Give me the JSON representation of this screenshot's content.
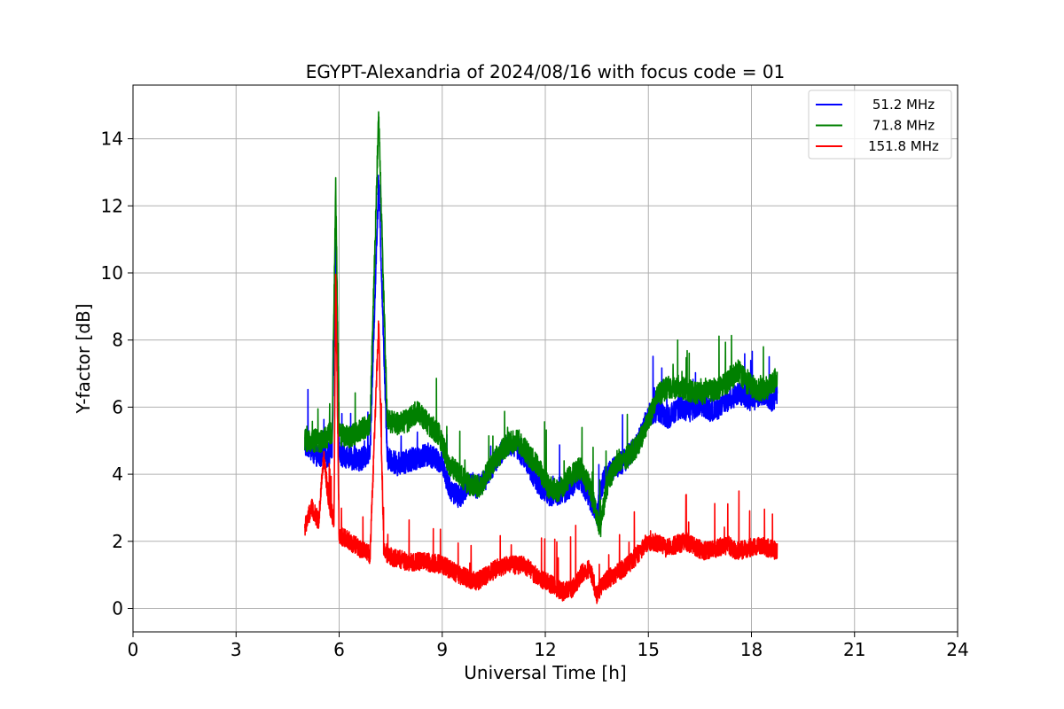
{
  "chart_data": {
    "type": "line",
    "title": "EGYPT-Alexandria of 2024/08/16 with focus code = 01",
    "xlabel": "Universal Time [h]",
    "ylabel": "Y-factor [dB]",
    "xlim": [
      0,
      24
    ],
    "ylim": [
      -0.7,
      15.6
    ],
    "xticks": [
      0,
      3,
      6,
      9,
      12,
      15,
      18,
      21,
      24
    ],
    "yticks": [
      0,
      2,
      4,
      6,
      8,
      10,
      12,
      14
    ],
    "xtick_labels": [
      "0",
      "3",
      "6",
      "9",
      "12",
      "15",
      "18",
      "21",
      "24"
    ],
    "ytick_labels": [
      "0",
      "2",
      "4",
      "6",
      "8",
      "10",
      "12",
      "14"
    ],
    "grid": true,
    "legend_position": "top-right",
    "series": [
      {
        "name": "51.2 MHz",
        "color": "#0000ff",
        "noise": 0.35,
        "x": [
          5.0,
          5.3,
          5.6,
          5.8,
          5.9,
          6.0,
          6.3,
          6.6,
          6.9,
          7.15,
          7.4,
          7.7,
          8.0,
          8.3,
          8.6,
          9.0,
          9.2,
          9.5,
          9.8,
          10.0,
          10.3,
          10.6,
          10.9,
          11.2,
          11.5,
          11.8,
          12.1,
          12.4,
          12.7,
          13.0,
          13.3,
          13.5,
          13.7,
          14.0,
          14.3,
          14.6,
          14.8,
          15.0,
          15.3,
          15.6,
          15.9,
          16.2,
          16.5,
          16.8,
          17.1,
          17.4,
          17.7,
          18.0,
          18.3,
          18.6,
          18.75
        ],
        "y": [
          4.9,
          4.6,
          4.5,
          4.7,
          11.0,
          4.6,
          4.5,
          4.4,
          4.7,
          12.8,
          4.5,
          4.3,
          4.4,
          4.5,
          4.6,
          4.3,
          3.6,
          3.3,
          3.8,
          3.6,
          3.9,
          4.5,
          4.9,
          4.8,
          4.3,
          3.7,
          3.4,
          3.4,
          3.6,
          3.9,
          3.3,
          2.8,
          3.9,
          4.2,
          4.4,
          4.8,
          5.2,
          5.8,
          5.9,
          5.7,
          6.0,
          5.9,
          6.1,
          5.9,
          6.0,
          6.3,
          6.4,
          6.2,
          6.4,
          6.2,
          6.3
        ]
      },
      {
        "name": "71.8 MHz",
        "color": "#008000",
        "noise": 0.35,
        "x": [
          5.0,
          5.3,
          5.55,
          5.8,
          5.9,
          6.0,
          6.3,
          6.6,
          6.9,
          7.15,
          7.4,
          7.7,
          8.0,
          8.3,
          8.6,
          8.9,
          9.2,
          9.5,
          9.8,
          10.1,
          10.3,
          10.6,
          10.9,
          11.2,
          11.5,
          11.8,
          12.1,
          12.4,
          12.7,
          13.0,
          13.3,
          13.6,
          13.8,
          14.1,
          14.4,
          14.7,
          15.0,
          15.3,
          15.6,
          15.9,
          16.2,
          16.5,
          16.8,
          17.1,
          17.4,
          17.6,
          17.9,
          18.2,
          18.5,
          18.75
        ],
        "y": [
          5.0,
          5.0,
          5.0,
          5.3,
          12.6,
          5.2,
          5.1,
          5.3,
          5.5,
          14.7,
          5.6,
          5.5,
          5.6,
          5.9,
          5.5,
          5.2,
          4.3,
          4.0,
          3.7,
          3.6,
          4.0,
          4.5,
          4.9,
          5.0,
          4.6,
          4.2,
          3.6,
          3.5,
          3.9,
          4.2,
          3.6,
          2.4,
          3.7,
          4.4,
          4.5,
          4.9,
          5.6,
          6.4,
          6.6,
          6.6,
          6.5,
          6.4,
          6.5,
          6.6,
          6.8,
          7.1,
          6.7,
          6.5,
          6.6,
          6.9
        ]
      },
      {
        "name": "151.8 MHz",
        "color": "#ff0000",
        "noise": 0.28,
        "x": [
          5.0,
          5.2,
          5.4,
          5.55,
          5.7,
          5.85,
          5.9,
          6.0,
          6.3,
          6.6,
          6.9,
          7.15,
          7.3,
          7.6,
          8.0,
          8.5,
          9.0,
          9.5,
          10.0,
          10.3,
          10.6,
          11.0,
          11.4,
          11.8,
          12.2,
          12.5,
          12.8,
          13.1,
          13.3,
          13.5,
          13.7,
          14.0,
          14.3,
          14.6,
          14.9,
          15.2,
          15.5,
          15.8,
          16.1,
          16.4,
          16.7,
          17.0,
          17.3,
          17.6,
          17.9,
          18.2,
          18.5,
          18.75
        ],
        "y": [
          2.4,
          3.0,
          2.6,
          4.5,
          3.2,
          2.6,
          10.0,
          2.2,
          2.0,
          1.8,
          1.6,
          8.5,
          1.7,
          1.5,
          1.4,
          1.4,
          1.3,
          1.0,
          0.8,
          1.0,
          1.2,
          1.3,
          1.3,
          0.9,
          0.7,
          0.5,
          0.6,
          1.1,
          1.2,
          0.4,
          0.8,
          1.0,
          1.2,
          1.5,
          1.9,
          2.0,
          1.8,
          1.9,
          2.0,
          1.8,
          1.7,
          1.8,
          1.9,
          1.7,
          1.8,
          1.9,
          1.8,
          1.7
        ]
      }
    ]
  }
}
